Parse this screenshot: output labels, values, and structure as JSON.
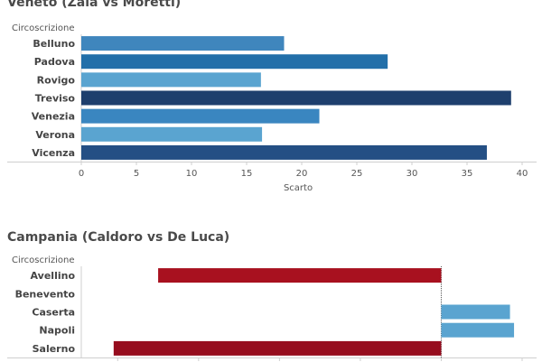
{
  "chart_data": [
    {
      "type": "bar",
      "orientation": "horizontal",
      "title": "Veneto (Zaia vs Moretti)",
      "dimension_label": "Circoscrizione",
      "xlabel": "Scarto",
      "categories": [
        "Belluno",
        "Padova",
        "Rovigo",
        "Treviso",
        "Venezia",
        "Verona",
        "Vicenza"
      ],
      "values": [
        18.4,
        27.8,
        16.3,
        39.0,
        21.6,
        16.4,
        36.8
      ],
      "colors": [
        "#3f86bd",
        "#226fa9",
        "#5aa4d0",
        "#1e3f6d",
        "#3a86c0",
        "#5aa4d0",
        "#244f84"
      ],
      "xlim": [
        0,
        40
      ],
      "xticks": [
        0,
        5,
        10,
        15,
        20,
        25,
        30,
        35,
        40
      ],
      "grid": false
    },
    {
      "type": "bar",
      "orientation": "horizontal",
      "title": "Campania (Caldoro vs De Luca)",
      "dimension_label": "Circoscrizione",
      "categories": [
        "Avellino",
        "Benevento",
        "Caserta",
        "Napoli",
        "Salerno"
      ],
      "values": [
        -35,
        0,
        8.5,
        9,
        -40.5
      ],
      "colors": [
        "#a8111f",
        "#a8111f",
        "#5aa4d0",
        "#5aa4d0",
        "#960d1e"
      ],
      "xlim": [
        -44.5,
        10
      ],
      "grid": false
    }
  ]
}
